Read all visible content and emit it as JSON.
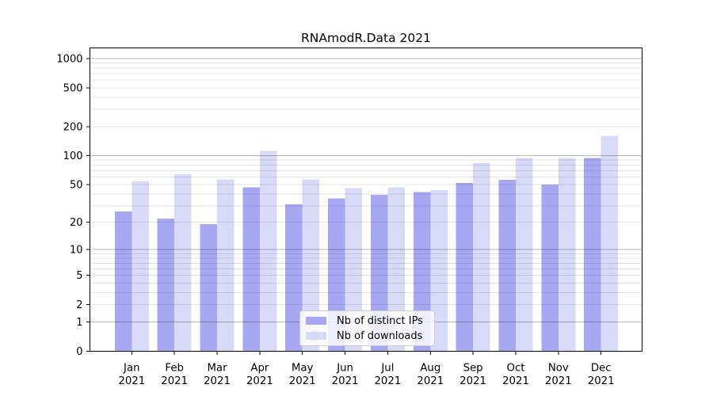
{
  "chart_data": {
    "type": "bar",
    "title": "RNAmodR.Data 2021",
    "categories": [
      "Jan",
      "Feb",
      "Mar",
      "Apr",
      "May",
      "Jun",
      "Jul",
      "Aug",
      "Sep",
      "Oct",
      "Nov",
      "Dec"
    ],
    "category_sublabel": "2021",
    "series": [
      {
        "name": "Nb of distinct IPs",
        "color": "#a8a8f2",
        "values": [
          26,
          22,
          19,
          47,
          31,
          36,
          39,
          42,
          52,
          56,
          50,
          95
        ]
      },
      {
        "name": "Nb of downloads",
        "color": "#d9d9f8",
        "values": [
          54,
          64,
          57,
          112,
          57,
          46,
          47,
          44,
          84,
          95,
          95,
          160
        ]
      }
    ],
    "yscale": "log10(value+1)",
    "y_ticks": [
      0,
      1,
      2,
      5,
      10,
      20,
      50,
      100,
      200,
      500,
      1000
    ],
    "decade_gridlines": [
      1,
      10,
      100,
      1000
    ],
    "minor_gridlines": [
      2,
      3,
      4,
      5,
      20,
      30,
      40,
      60,
      70,
      80,
      90,
      200,
      300,
      400,
      600,
      700,
      800,
      900,
      6,
      7,
      8,
      9,
      30,
      50,
      500
    ],
    "ylim": [
      0,
      1285
    ],
    "grid": "horizontal",
    "legend_position": "lower center",
    "colors": {
      "ips_bar": "#a8a8f2",
      "downloads_bar": "#d9d9f8",
      "grid_major": "rgba(0,0,0,0.28)",
      "grid_minor": "rgba(0,0,0,0.10)",
      "frame": "#000000",
      "background": "#ffffff"
    }
  }
}
